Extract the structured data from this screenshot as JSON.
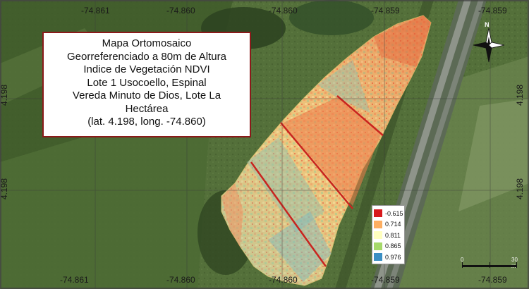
{
  "title_lines": [
    "Mapa Ortomosaico",
    "Georreferenciado a 80m de Altura",
    "Indice de Vegetación NDVI",
    "Lote 1 Usocoello, Espinal",
    "Vereda Minuto de Dios, Lote La",
    "Hectárea",
    "(lat. 4.198, long. -74.860)"
  ],
  "coords": {
    "top": [
      "-74.861",
      "-74.860",
      "-74.860",
      "-74.859",
      "-74.859"
    ],
    "bottom": [
      "-74.861",
      "-74.860",
      "-74.860",
      "-74.859",
      "-74.859"
    ],
    "left": [
      "4.198",
      "4.198"
    ],
    "right": [
      "4.198",
      "4.198"
    ]
  },
  "legend": [
    {
      "label": "-0.615",
      "color": "#d7191c"
    },
    {
      "label": "0.714",
      "color": "#fdae61"
    },
    {
      "label": "0.811",
      "color": "#ffffbf"
    },
    {
      "label": "0.865",
      "color": "#a6d96a"
    },
    {
      "label": "0.976",
      "color": "#3b8fc4"
    }
  ],
  "scale": {
    "start": "0",
    "end": "30 m"
  },
  "north_label": "N",
  "icons": {
    "north_arrow": "north-arrow-icon"
  }
}
